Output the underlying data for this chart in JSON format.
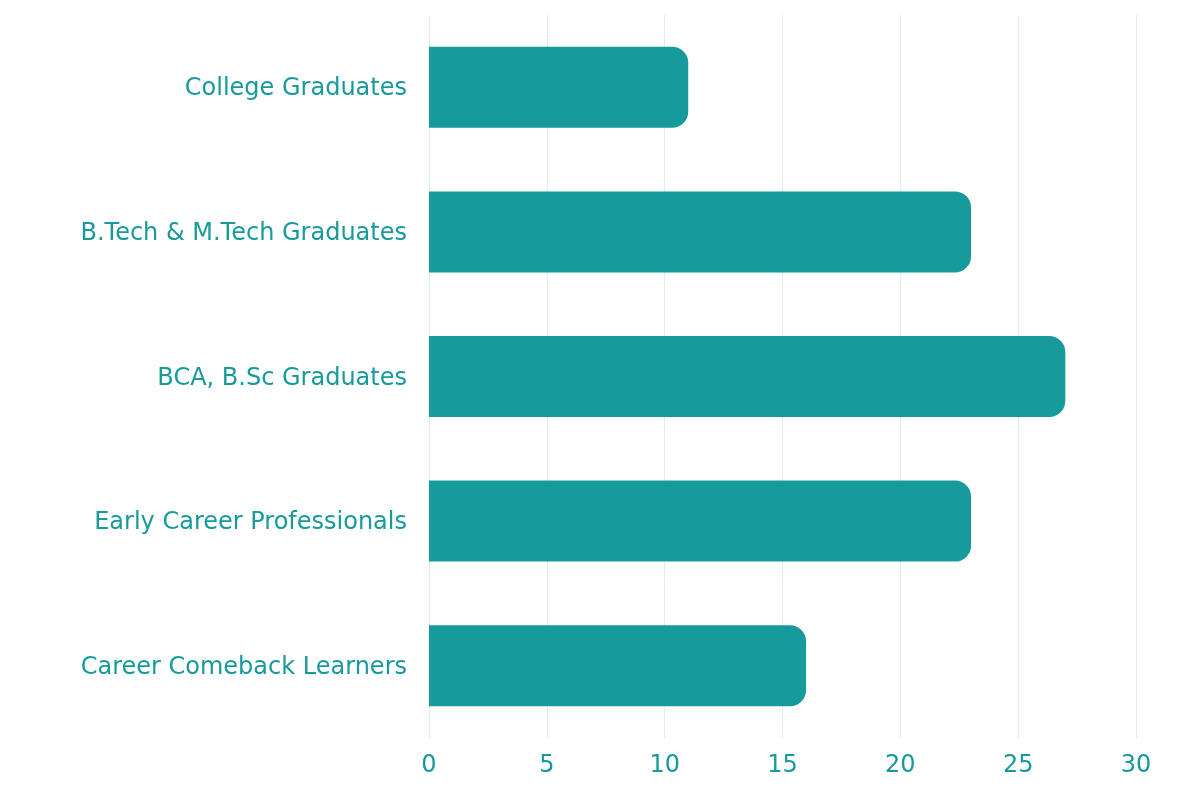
{
  "chart_data": {
    "type": "bar",
    "orientation": "horizontal",
    "categories": [
      "College Graduates",
      "B.Tech & M.Tech Graduates",
      "BCA, B.Sc Graduates",
      "Early Career Professionals",
      "Career Comeback Learners"
    ],
    "values": [
      11,
      23,
      27,
      23,
      16
    ],
    "color": "#179a9b",
    "xlim": [
      0,
      30
    ],
    "xticks": [
      0,
      5,
      10,
      15,
      20,
      25,
      30
    ],
    "grid": "x"
  }
}
